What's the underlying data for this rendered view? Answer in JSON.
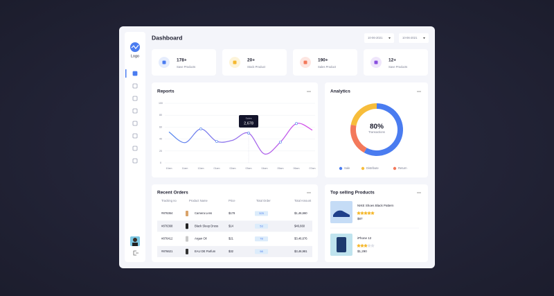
{
  "sidebar": {
    "logo": "Logo"
  },
  "header": {
    "title": "Dashboard",
    "dates": [
      "10-06-2021",
      "10-06-2021"
    ]
  },
  "stats": [
    {
      "value": "178+",
      "label": "Save Products",
      "color": "#4a7cf0",
      "bg": "#e6edfd"
    },
    {
      "value": "20+",
      "label": "Stock Product",
      "color": "#f5b82e",
      "bg": "#fdf4d9"
    },
    {
      "value": "190+",
      "label": "Sales Product",
      "color": "#f3795b",
      "bg": "#fde6e1"
    },
    {
      "value": "12+",
      "label": "Save Products",
      "color": "#8a4fe0",
      "bg": "#efe6fb"
    }
  ],
  "reports": {
    "title": "Reports",
    "type": "line",
    "categories": [
      "10am",
      "11am",
      "12am",
      "01am",
      "02am",
      "03am",
      "04am",
      "05am",
      "06am",
      "07am"
    ],
    "values": [
      52,
      34,
      57,
      36,
      38,
      50,
      15,
      35,
      66,
      55
    ],
    "ylim": [
      0,
      100
    ],
    "yticks": [
      0,
      20,
      40,
      60,
      80,
      100
    ],
    "grid": true,
    "color": [
      "#5b8def",
      "#d84fe8"
    ],
    "tooltip": {
      "label": "Sales",
      "value": "2,678"
    }
  },
  "analytics": {
    "title": "Analytics",
    "type": "donut",
    "center_value": "80%",
    "center_label": "Transactions",
    "series": [
      {
        "name": "Sale",
        "color": "#4a7cf0",
        "value": 58
      },
      {
        "name": "Distribute",
        "color": "#f7bd3b",
        "value": 22
      },
      {
        "name": "Return",
        "color": "#f3795b",
        "value": 20
      }
    ]
  },
  "recent_orders": {
    "title": "Recent Orders",
    "columns": [
      "Tracking no",
      "Product Name",
      "Price",
      "Total Order",
      "Total Amount"
    ],
    "rows": [
      [
        "#876364",
        "Camera Lens",
        "$178",
        "325",
        "$1,46,660"
      ],
      [
        "#876368",
        "Black Sleep Dress",
        "$14",
        "53",
        "$46,660"
      ],
      [
        "#876412",
        "Argan Oil",
        "$21",
        "78",
        "$3,46,676"
      ],
      [
        "#876621",
        "EAU DE Parfum",
        "$32",
        "98",
        "$3,46,981"
      ]
    ]
  },
  "top_selling": {
    "title": "Top selling Products",
    "products": [
      {
        "name": "NIKE Shoes Black Pattern",
        "price": "$87",
        "rating": 5
      },
      {
        "name": "iPhone 12",
        "price": "$1,290",
        "rating": 3
      }
    ]
  }
}
